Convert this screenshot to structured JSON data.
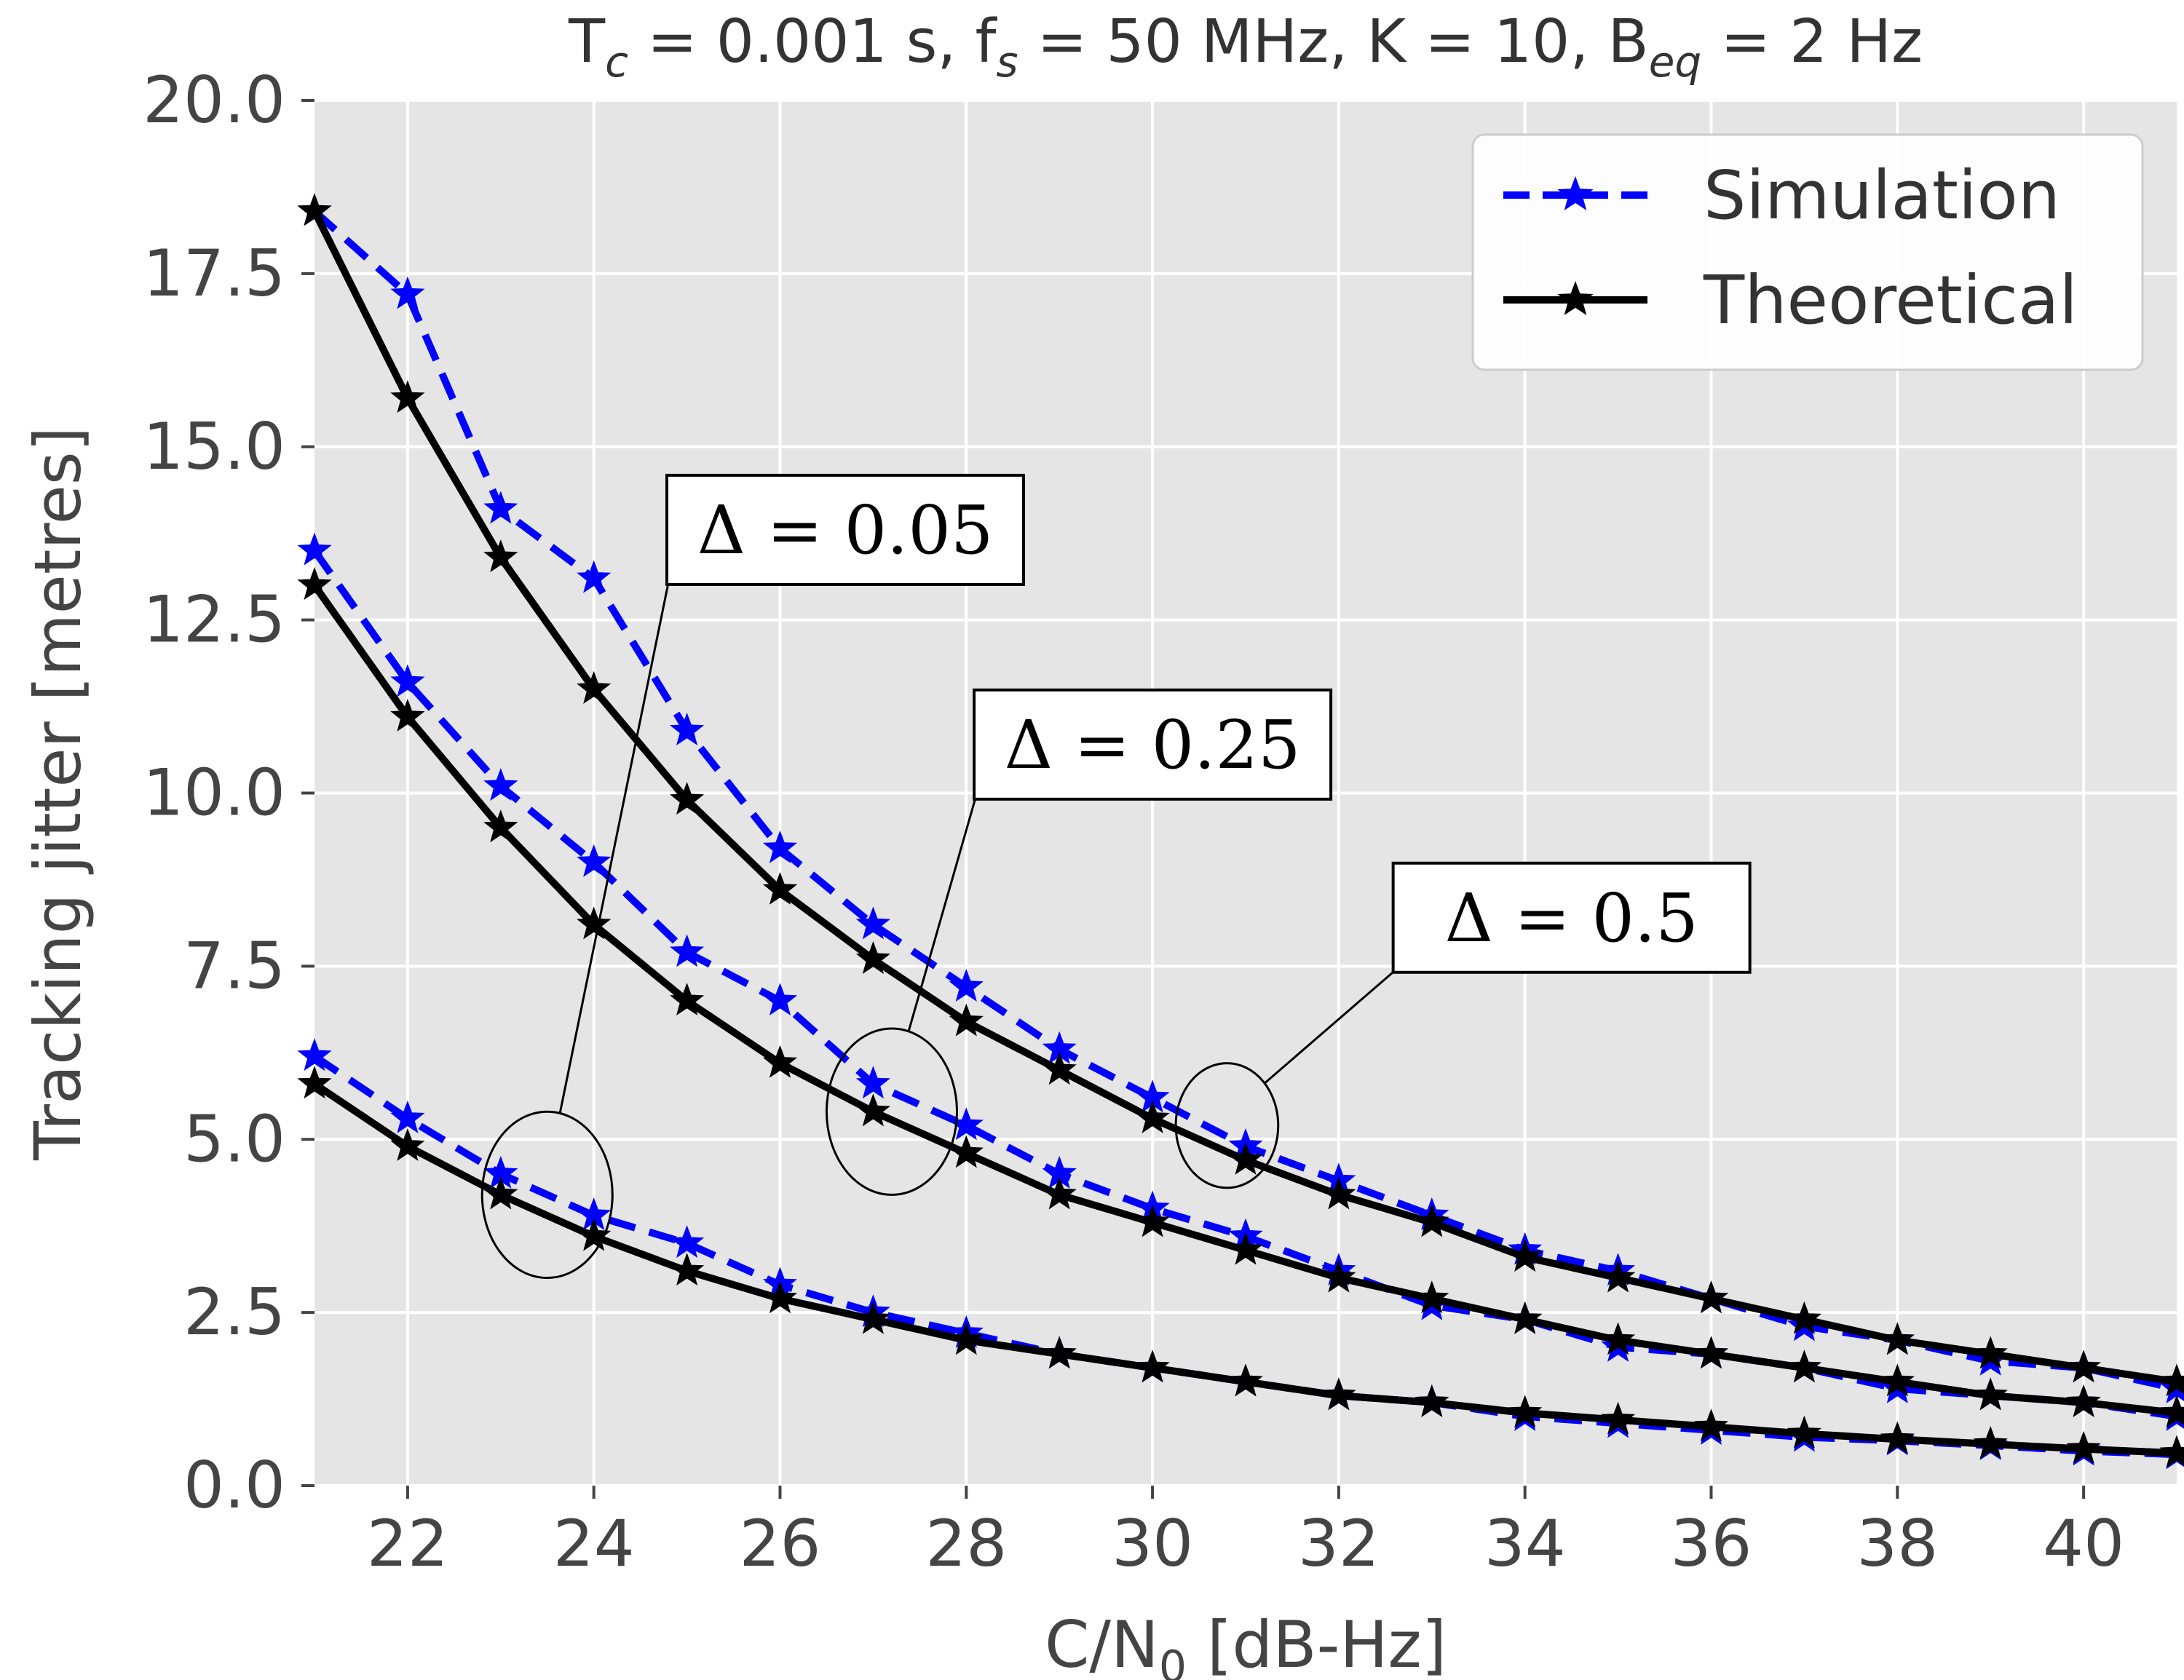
{
  "chart_data": {
    "type": "line",
    "title": {
      "t_symbol": "T",
      "t_sub": "c",
      "t_value": " = 0.001 s, ",
      "f_symbol": "f",
      "f_sub": "s",
      "f_value": " = 50 MHz, K = 10, ",
      "b_symbol": "B",
      "b_sub": "eq",
      "b_value": " = 2 Hz"
    },
    "xlabel": {
      "prefix": "C/N",
      "sub": "0",
      "suffix": " [dB-Hz]"
    },
    "ylabel": "Tracking jitter [metres]",
    "xlim": [
      21,
      41
    ],
    "ylim": [
      0,
      20
    ],
    "xticks": [
      22,
      24,
      26,
      28,
      30,
      32,
      34,
      36,
      38,
      40
    ],
    "xtick_labels": [
      "22",
      "24",
      "26",
      "28",
      "30",
      "32",
      "34",
      "36",
      "38",
      "40"
    ],
    "yticks": [
      0,
      2.5,
      5,
      7.5,
      10,
      12.5,
      15,
      17.5,
      20
    ],
    "ytick_labels": [
      "0.0",
      "2.5",
      "5.0",
      "7.5",
      "10.0",
      "12.5",
      "15.0",
      "17.5",
      "20.0"
    ],
    "grid": true,
    "background": "#e5e5e5",
    "legend": {
      "position": "top-right",
      "entries": [
        {
          "label": "Simulation",
          "style": "dashed",
          "color": "#0000ff"
        },
        {
          "label": "Theoretical",
          "style": "solid",
          "color": "#000000"
        }
      ]
    },
    "x": [
      21,
      22,
      23,
      24,
      25,
      26,
      27,
      28,
      29,
      30,
      31,
      32,
      33,
      34,
      35,
      36,
      37,
      38,
      39,
      40,
      41
    ],
    "series": [
      {
        "name": "Simulation",
        "delta": "0.5",
        "color": "#0000ff",
        "style": "dashed",
        "values": [
          18.4,
          17.2,
          14.1,
          13.1,
          10.9,
          9.2,
          8.1,
          7.2,
          6.3,
          5.6,
          4.9,
          4.4,
          3.9,
          3.4,
          3.1,
          2.7,
          2.3,
          2.1,
          1.8,
          1.7,
          1.4
        ]
      },
      {
        "name": "Theoretical",
        "delta": "0.5",
        "color": "#000000",
        "style": "solid",
        "values": [
          18.4,
          15.7,
          13.4,
          11.5,
          9.9,
          8.6,
          7.6,
          6.7,
          6.0,
          5.3,
          4.7,
          4.2,
          3.8,
          3.3,
          3.0,
          2.7,
          2.4,
          2.1,
          1.9,
          1.7,
          1.5
        ]
      },
      {
        "name": "Simulation",
        "delta": "0.25",
        "color": "#0000ff",
        "style": "dashed",
        "values": [
          13.5,
          11.6,
          10.1,
          9.0,
          7.7,
          7.0,
          5.8,
          5.2,
          4.5,
          4.0,
          3.6,
          3.1,
          2.6,
          2.4,
          2.0,
          1.9,
          1.7,
          1.4,
          1.3,
          1.2,
          1.0
        ]
      },
      {
        "name": "Theoretical",
        "delta": "0.25",
        "color": "#000000",
        "style": "solid",
        "values": [
          13.0,
          11.1,
          9.5,
          8.1,
          7.0,
          6.1,
          5.4,
          4.8,
          4.2,
          3.8,
          3.4,
          3.0,
          2.7,
          2.4,
          2.1,
          1.9,
          1.7,
          1.5,
          1.3,
          1.2,
          1.05
        ]
      },
      {
        "name": "Simulation",
        "delta": "0.05",
        "color": "#0000ff",
        "style": "dashed",
        "values": [
          6.2,
          5.3,
          4.5,
          3.9,
          3.5,
          2.9,
          2.5,
          2.2,
          1.9,
          1.7,
          1.5,
          1.3,
          1.2,
          1.0,
          0.9,
          0.8,
          0.7,
          0.65,
          0.58,
          0.5,
          0.45
        ]
      },
      {
        "name": "Theoretical",
        "delta": "0.05",
        "color": "#000000",
        "style": "solid",
        "values": [
          5.8,
          4.9,
          4.2,
          3.6,
          3.1,
          2.7,
          2.4,
          2.1,
          1.9,
          1.7,
          1.5,
          1.3,
          1.2,
          1.05,
          0.95,
          0.85,
          0.75,
          0.67,
          0.6,
          0.53,
          0.47
        ]
      }
    ],
    "annotations": [
      {
        "id": "d005",
        "text": "Δ = 0.05",
        "box_at": [
          26.7,
          13.8
        ],
        "ellipse_center": [
          23.5,
          4.2
        ],
        "ellipse_radii": [
          0.7,
          1.2
        ]
      },
      {
        "id": "d025",
        "text": "Δ = 0.25",
        "box_at": [
          30.0,
          10.7
        ],
        "ellipse_center": [
          27.2,
          5.4
        ],
        "ellipse_radii": [
          0.7,
          1.2
        ]
      },
      {
        "id": "d05",
        "text": "Δ = 0.5",
        "box_at": [
          34.5,
          8.2
        ],
        "ellipse_center": [
          30.8,
          5.2
        ],
        "ellipse_radii": [
          0.55,
          0.9
        ]
      }
    ]
  }
}
